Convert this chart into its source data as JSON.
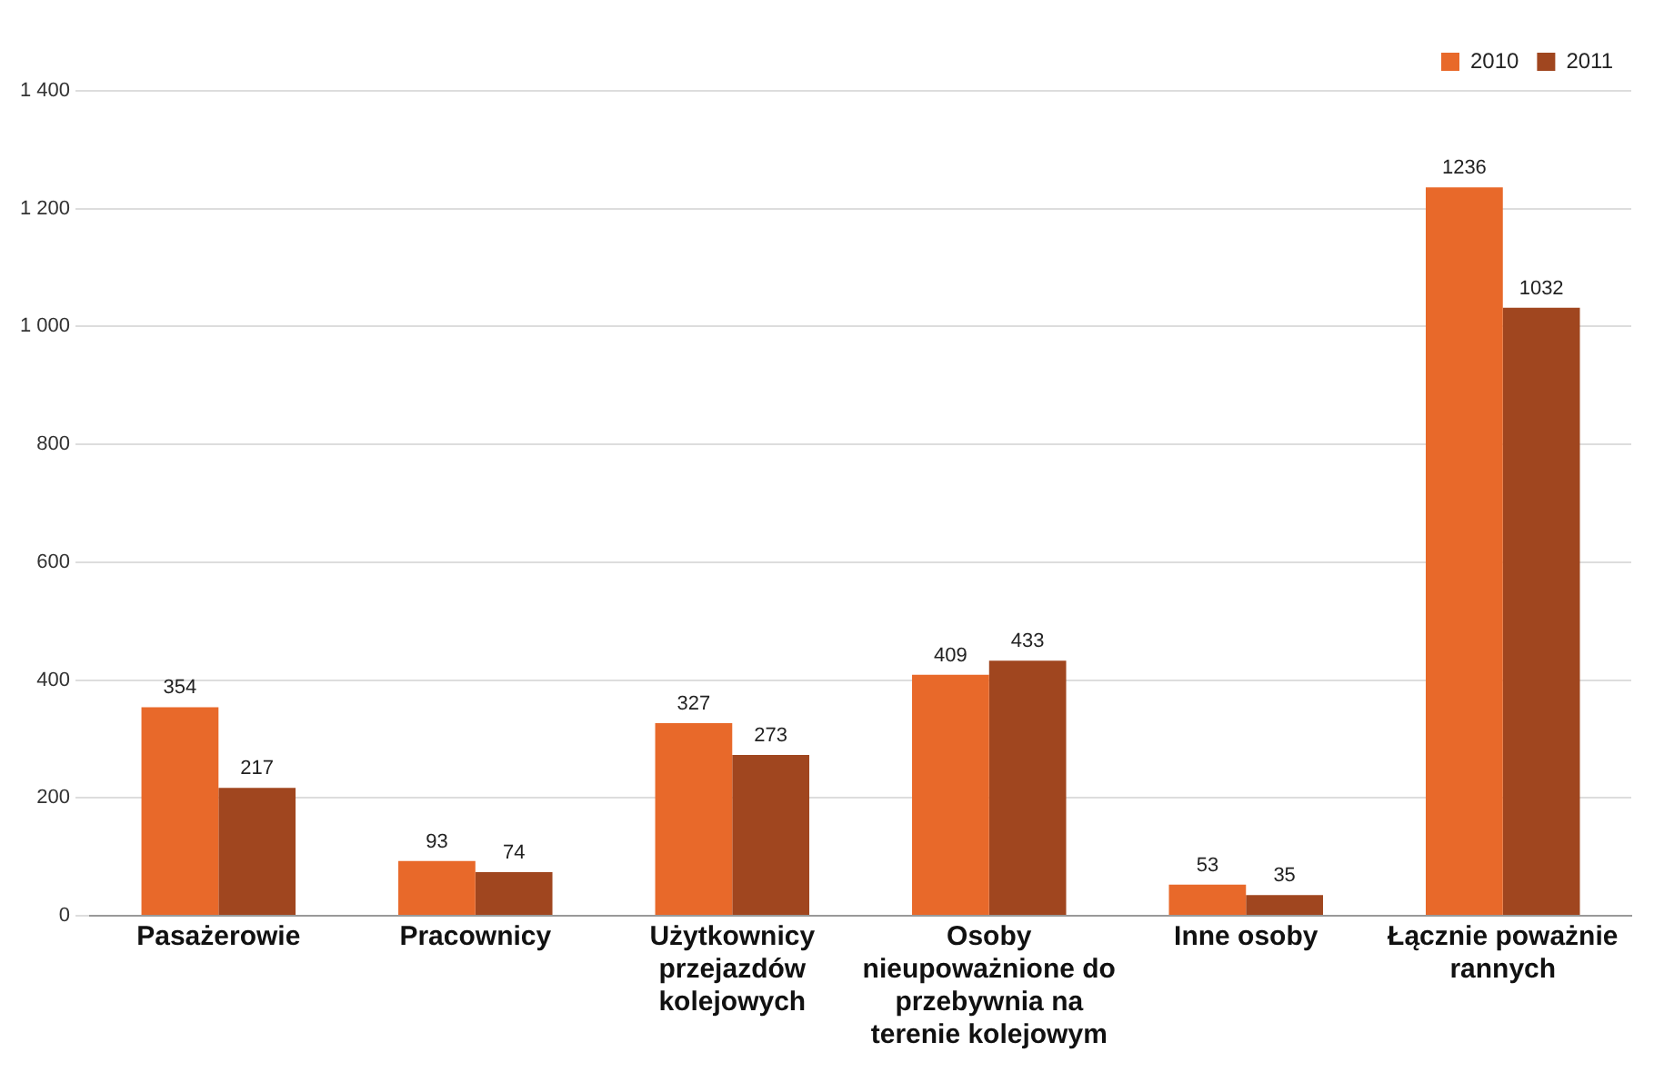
{
  "chart_data": {
    "type": "bar",
    "categories": [
      "Pasażerowie",
      "Pracownicy",
      "Użytkownicy przejazdów kolejowych",
      "Osoby nieupoważnione do przebywnia na terenie kolejowym",
      "Inne osoby",
      "Łącznie poważnie rannych"
    ],
    "series": [
      {
        "name": "2010",
        "color": "#e8692a",
        "values": [
          354,
          93,
          327,
          409,
          53,
          1236
        ]
      },
      {
        "name": "2011",
        "color": "#a0461f",
        "values": [
          217,
          74,
          273,
          433,
          35,
          1032
        ]
      }
    ],
    "ylim": [
      0,
      1400
    ],
    "yticks": [
      0,
      200,
      400,
      600,
      800,
      {
        "value": 1000,
        "label": "1 000"
      },
      {
        "value": 1200,
        "label": "1 200"
      },
      {
        "value": 1400,
        "label": "1 400"
      }
    ],
    "grid": "y",
    "legend": "top right",
    "data_labels": true
  }
}
